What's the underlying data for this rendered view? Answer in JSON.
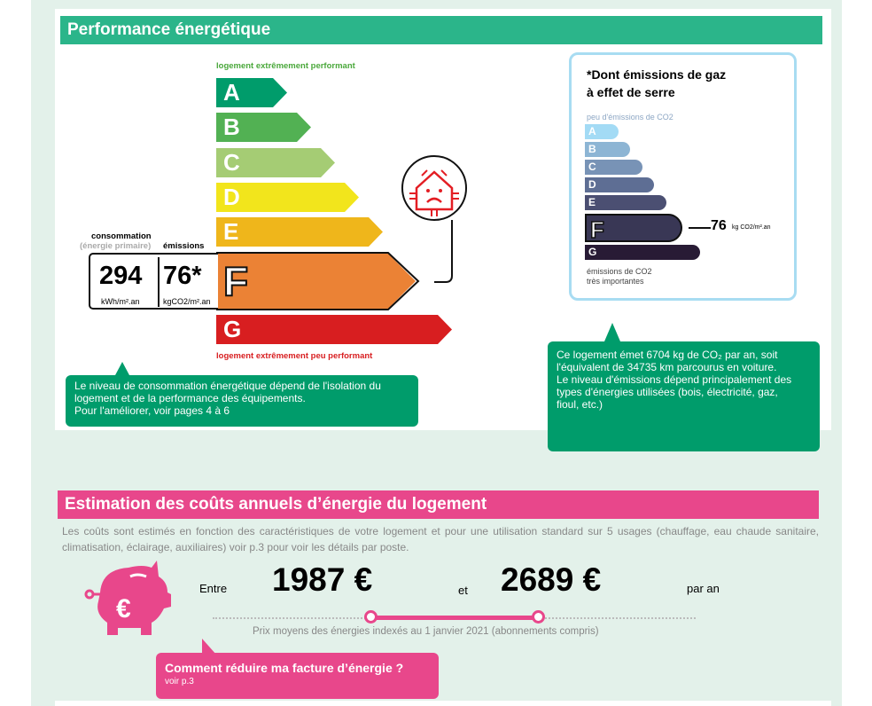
{
  "section1": {
    "title": "Performance énergétique",
    "top_label": "logement extrêmement performant",
    "bottom_label": "logement extrêmement peu performant",
    "classes": [
      {
        "letter": "A",
        "color": "#009c6b"
      },
      {
        "letter": "B",
        "color": "#52b153"
      },
      {
        "letter": "C",
        "color": "#a5cc74"
      },
      {
        "letter": "D",
        "color": "#f2e51c"
      },
      {
        "letter": "E",
        "color": "#efb61b"
      },
      {
        "letter": "F",
        "color": "#eb8235"
      },
      {
        "letter": "G",
        "color": "#d81e20"
      }
    ],
    "current_class": "F",
    "consumption_label": "consommation",
    "consumption_sub": "(énergie primaire)",
    "emissions_label": "émissions",
    "consumption_value": "294",
    "consumption_unit": "kWh/m².an",
    "emissions_value": "76*",
    "emissions_unit": "kgCO2/m².an",
    "pictogram_icon": "house-thermal-leak-sad-icon",
    "callout": [
      "Le niveau de consommation énergétique dépend de l'isolation du",
      "logement et de la performance des équipements.",
      "Pour l'améliorer, voir pages 4 à 6"
    ]
  },
  "ghg": {
    "title_line1": "*Dont émissions de gaz",
    "title_line2": "à effet de serre",
    "top_label": "peu d'émissions de CO2",
    "classes": [
      {
        "letter": "A",
        "color": "#a3dbf5"
      },
      {
        "letter": "B",
        "color": "#8db5d4"
      },
      {
        "letter": "C",
        "color": "#7893b6"
      },
      {
        "letter": "D",
        "color": "#5e6e94"
      },
      {
        "letter": "E",
        "color": "#4b4f72"
      },
      {
        "letter": "F",
        "color": "#393755"
      },
      {
        "letter": "G",
        "color": "#281b35"
      }
    ],
    "value": "76",
    "unit": "kg CO2/m².an",
    "bottom_line1": "émissions de CO2",
    "bottom_line2": "très importantes",
    "callout": [
      "Ce logement émet 6704 kg de CO₂  par an, soit",
      "l'équivalent de 34735  km parcourus en voiture.",
      "Le niveau d'émissions dépend principalement des",
      "types d'énergies utilisées (bois, électricité, gaz,",
      "fioul, etc.)"
    ]
  },
  "section2": {
    "title": "Estimation des coûts annuels d’énergie du logement",
    "intro_line1": "Les coûts sont estimés en fonction des caractéristiques de votre logement et pour une utilisation standard sur 5 usages (chauffage, eau chaude sanitaire,",
    "intro_line2": "climatisation, éclairage, auxiliaires) voir p.3 pour voir les détails par poste.",
    "between": "Entre",
    "min": "1987 €",
    "and": "et",
    "max": "2689 €",
    "per_year": "par an",
    "caption": "Prix moyens des énergies indexés au 1 janvier 2021 (abonnements compris)",
    "callout_title": "Comment réduire ma facture d’énergie ?",
    "callout_sub": "voir p.3"
  },
  "colors": {
    "green": "#2bb58a",
    "callout_green": "#009c6b",
    "pink": "#e8478b"
  }
}
